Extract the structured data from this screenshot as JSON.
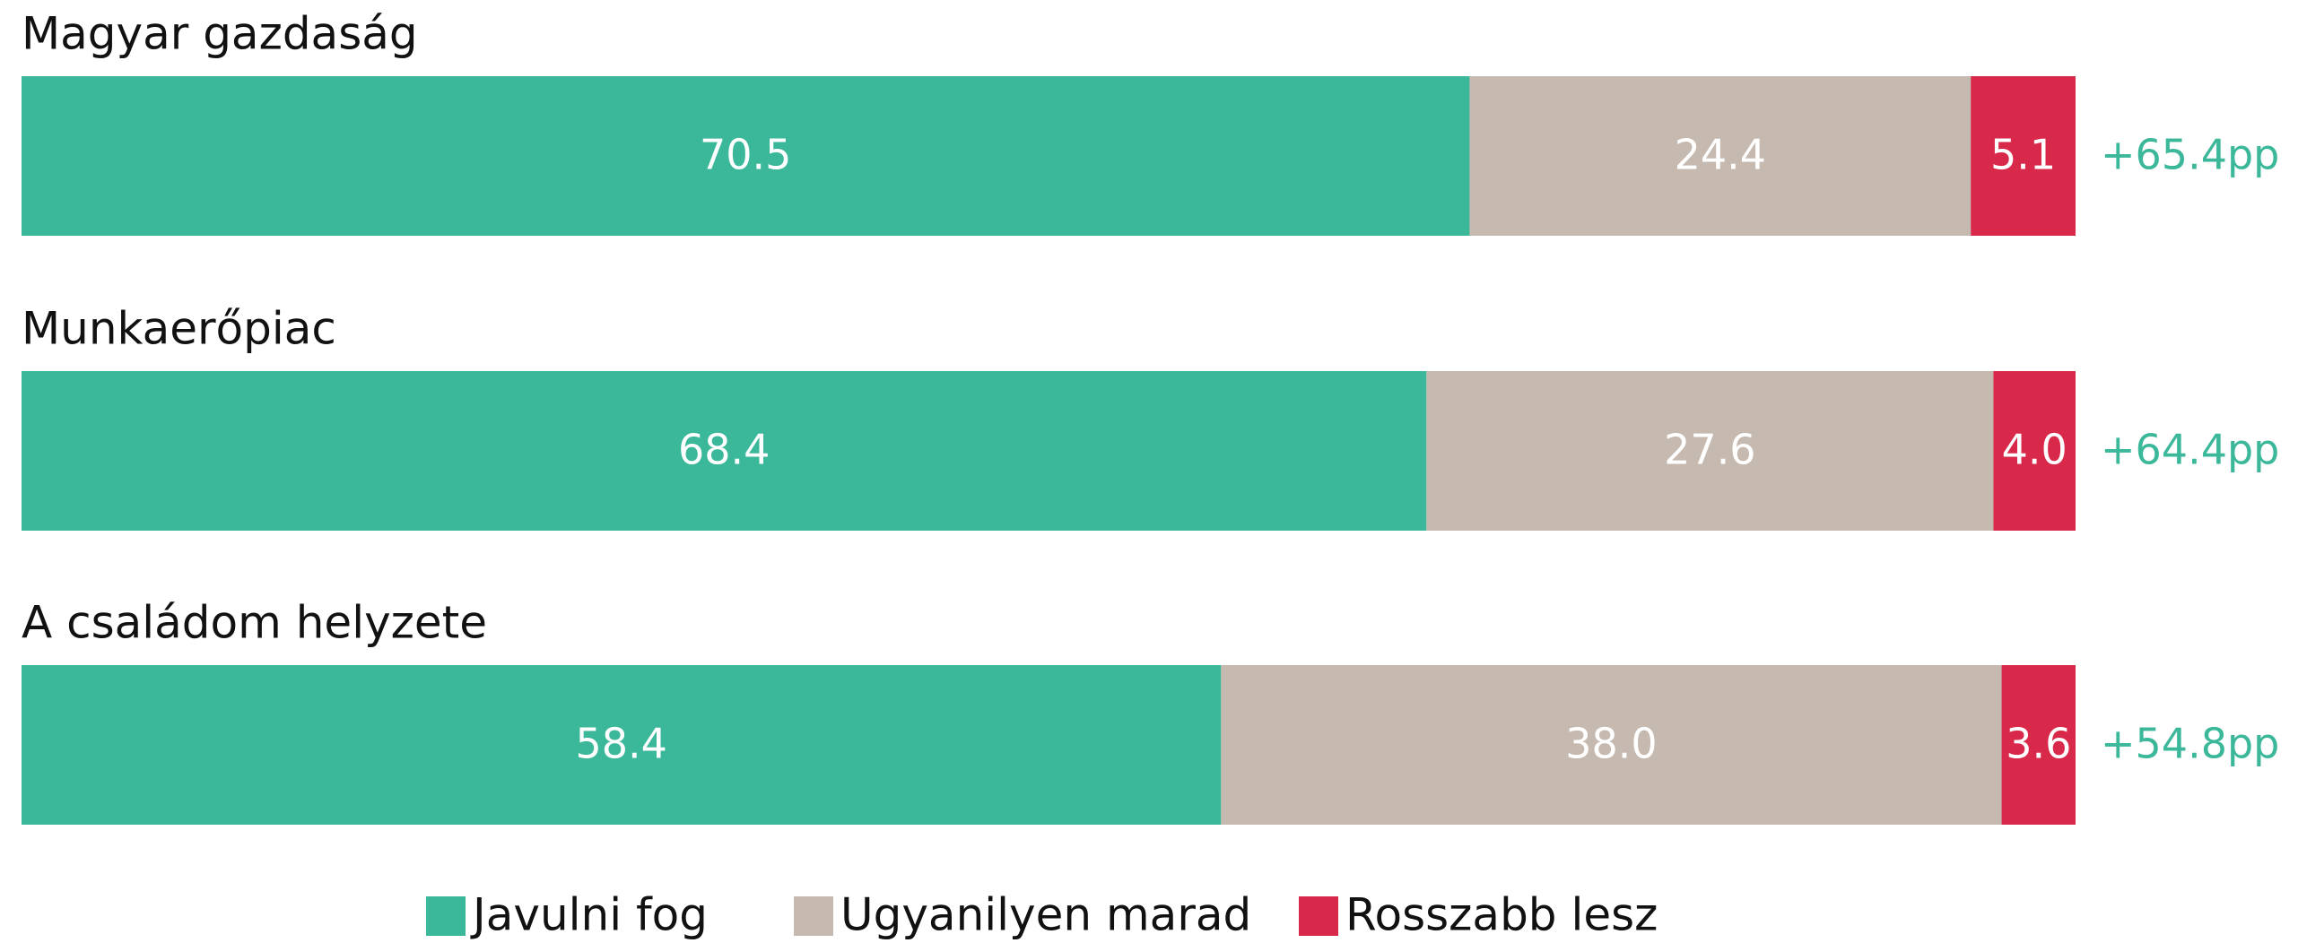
{
  "chart_data": {
    "type": "stacked_bar_horizontal",
    "categories": [
      "Magyar gazdaság",
      "Munkaerőpiac",
      "A családom helyzete"
    ],
    "series": [
      {
        "name": "Javulni fog",
        "color": "#3bb79a",
        "values": [
          70.5,
          68.4,
          58.4
        ],
        "value_labels": [
          "70.5",
          "68.4",
          "58.4"
        ]
      },
      {
        "name": "Ugyanilyen marad",
        "color": "#c6b9b0",
        "values": [
          24.4,
          27.6,
          38.0
        ],
        "value_labels": [
          "24.4",
          "27.6",
          "38.0"
        ]
      },
      {
        "name": "Rosszabb lesz",
        "color": "#d9294a",
        "values": [
          5.1,
          4.0,
          3.6
        ],
        "value_labels": [
          "5.1",
          "4.0",
          "3.6"
        ]
      }
    ],
    "annotations": [
      "+65.4pp",
      "+64.4pp",
      "+54.8pp"
    ],
    "xlim": [
      0,
      100
    ],
    "legend": "bottom"
  }
}
